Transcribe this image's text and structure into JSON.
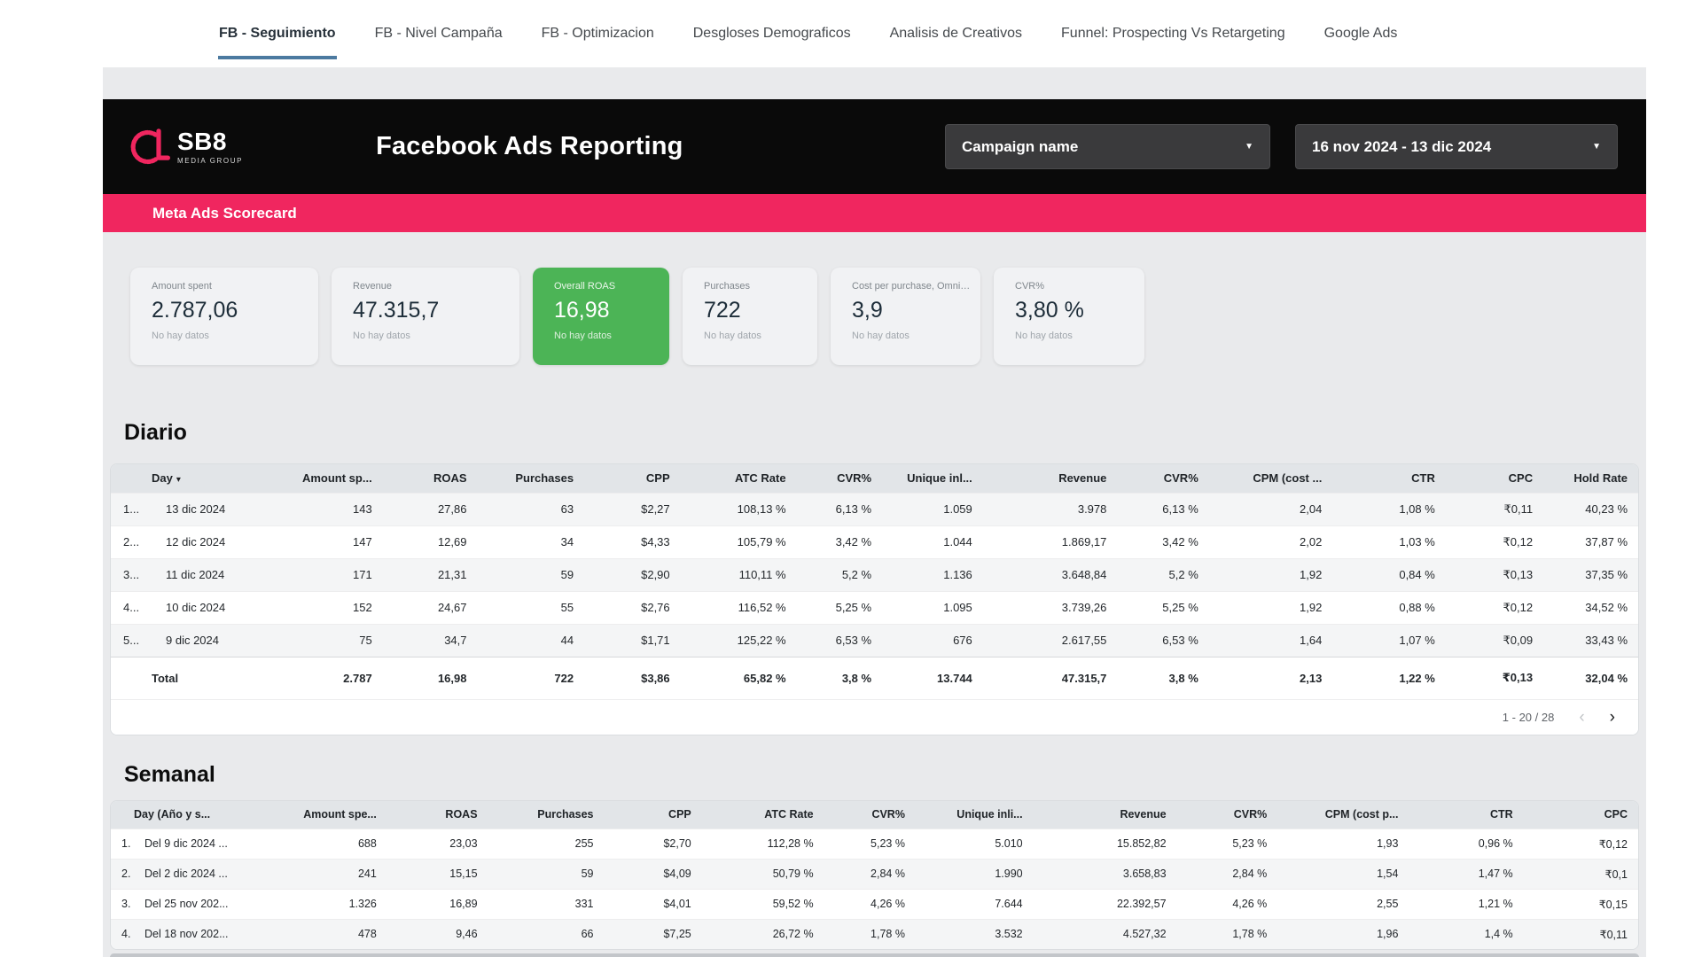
{
  "nav": {
    "tabs": [
      {
        "label": "FB - Seguimiento",
        "active": true
      },
      {
        "label": "FB - Nivel Campaña",
        "active": false
      },
      {
        "label": "FB - Optimizacion",
        "active": false
      },
      {
        "label": "Desgloses Demograficos",
        "active": false
      },
      {
        "label": "Analisis de Creativos",
        "active": false
      },
      {
        "label": "Funnel: Prospecting Vs Retargeting",
        "active": false
      },
      {
        "label": "Google Ads",
        "active": false
      }
    ]
  },
  "header": {
    "logo_main": "SB8",
    "logo_sub": "MEDIA GROUP",
    "title": "Facebook Ads Reporting",
    "campaign_filter_label": "Campaign name",
    "date_range_label": "16 nov 2024 - 13 dic 2024"
  },
  "scorecard_bar_title": "Meta Ads Scorecard",
  "scorecards": [
    {
      "label": "Amount spent",
      "value": "2.787,06",
      "note": "No hay datos",
      "variant": "default"
    },
    {
      "label": "Revenue",
      "value": "47.315,7",
      "note": "No hay datos",
      "variant": "default"
    },
    {
      "label": "Overall ROAS",
      "value": "16,98",
      "note": "No hay datos",
      "variant": "green"
    },
    {
      "label": "Purchases",
      "value": "722",
      "note": "No hay datos",
      "variant": "default"
    },
    {
      "label": "Cost per purchase, Omni (dep...",
      "value": "3,9",
      "note": "No hay datos",
      "variant": "default"
    },
    {
      "label": "CVR%",
      "value": "3,80 %",
      "note": "No hay datos",
      "variant": "default"
    }
  ],
  "daily": {
    "title": "Diario",
    "sort_icon": "▾",
    "columns": [
      "Day",
      "Amount sp...",
      "ROAS",
      "Purchases",
      "CPP",
      "ATC Rate",
      "CVR%",
      "Unique inl...",
      "Revenue",
      "CVR%",
      "CPM (cost ...",
      "CTR",
      "CPC",
      "Hold Rate"
    ],
    "rows": [
      {
        "num": "1...",
        "day": "13 dic 2024",
        "cells": [
          "143",
          "27,86",
          "63",
          "$2,27",
          "108,13 %",
          "6,13 %",
          "1.059",
          "3.978",
          "6,13 %",
          "2,04",
          "1,08 %",
          "₹0,11",
          "40,23 %"
        ]
      },
      {
        "num": "2...",
        "day": "12 dic 2024",
        "cells": [
          "147",
          "12,69",
          "34",
          "$4,33",
          "105,79 %",
          "3,42 %",
          "1.044",
          "1.869,17",
          "3,42 %",
          "2,02",
          "1,03 %",
          "₹0,12",
          "37,87 %"
        ]
      },
      {
        "num": "3...",
        "day": "11 dic 2024",
        "cells": [
          "171",
          "21,31",
          "59",
          "$2,90",
          "110,11 %",
          "5,2 %",
          "1.136",
          "3.648,84",
          "5,2 %",
          "1,92",
          "0,84 %",
          "₹0,13",
          "37,35 %"
        ]
      },
      {
        "num": "4...",
        "day": "10 dic 2024",
        "cells": [
          "152",
          "24,67",
          "55",
          "$2,76",
          "116,52 %",
          "5,25 %",
          "1.095",
          "3.739,26",
          "5,25 %",
          "1,92",
          "0,88 %",
          "₹0,12",
          "34,52 %"
        ]
      },
      {
        "num": "5...",
        "day": "9 dic 2024",
        "cells": [
          "75",
          "34,7",
          "44",
          "$1,71",
          "125,22 %",
          "6,53 %",
          "676",
          "2.617,55",
          "6,53 %",
          "1,64",
          "1,07 %",
          "₹0,09",
          "33,43 %"
        ]
      }
    ],
    "total": {
      "label": "Total",
      "cells": [
        "2.787",
        "16,98",
        "722",
        "$3,86",
        "65,82 %",
        "3,8 %",
        "13.744",
        "47.315,7",
        "3,8 %",
        "2,13",
        "1,22 %",
        "₹0,13",
        "32,04 %"
      ]
    },
    "pagination": {
      "range": "1 - 20 / 28",
      "prev_icon": "‹",
      "next_icon": "›"
    }
  },
  "weekly": {
    "title": "Semanal",
    "columns": [
      "Day (Año y s...",
      "Amount spe...",
      "ROAS",
      "Purchases",
      "CPP",
      "ATC Rate",
      "CVR%",
      "Unique inli...",
      "Revenue",
      "CVR%",
      "CPM (cost p...",
      "CTR",
      "CPC"
    ],
    "rows": [
      {
        "num": "1.",
        "day": "Del 9 dic 2024 ...",
        "cells": [
          "688",
          "23,03",
          "255",
          "$2,70",
          "112,28 %",
          "5,23 %",
          "5.010",
          "15.852,82",
          "5,23 %",
          "1,93",
          "0,96 %",
          "₹0,12"
        ]
      },
      {
        "num": "2.",
        "day": "Del 2 dic 2024 ...",
        "cells": [
          "241",
          "15,15",
          "59",
          "$4,09",
          "50,79 %",
          "2,84 %",
          "1.990",
          "3.658,83",
          "2,84 %",
          "1,54",
          "1,47 %",
          "₹0,1"
        ]
      },
      {
        "num": "3.",
        "day": "Del 25 nov 202...",
        "cells": [
          "1.326",
          "16,89",
          "331",
          "$4,01",
          "59,52 %",
          "4,26 %",
          "7.644",
          "22.392,57",
          "4,26 %",
          "2,55",
          "1,21 %",
          "₹0,15"
        ]
      },
      {
        "num": "4.",
        "day": "Del 18 nov 202...",
        "cells": [
          "478",
          "9,46",
          "66",
          "$7,25",
          "26,72 %",
          "1,78 %",
          "3.532",
          "4.527,32",
          "1,78 %",
          "1,96",
          "1,4 %",
          "₹0,11"
        ]
      }
    ]
  },
  "colors": {
    "accent_pink": "#f0265f",
    "green_card": "#4cb456",
    "active_tab_underline": "#4c7aa0",
    "header_black": "#0a0a0a"
  }
}
